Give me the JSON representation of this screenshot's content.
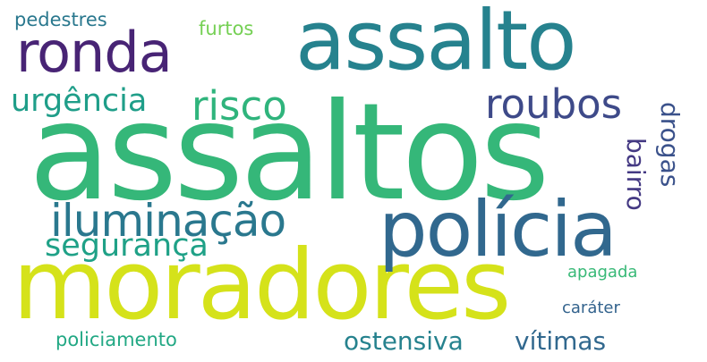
{
  "words": [
    {
      "text": "assaltos",
      "color": "#35b779"
    },
    {
      "text": "moradores",
      "color": "#d5e21a"
    },
    {
      "text": "assalto",
      "color": "#26828e"
    },
    {
      "text": "polícia",
      "color": "#31688e"
    },
    {
      "text": "ronda",
      "color": "#482475"
    },
    {
      "text": "iluminação",
      "color": "#2a788e"
    },
    {
      "text": "roubos",
      "color": "#3e4a89"
    },
    {
      "text": "risco",
      "color": "#2fb47c"
    },
    {
      "text": "urgência",
      "color": "#1f9e89"
    },
    {
      "text": "segurança",
      "color": "#1fa187"
    },
    {
      "text": "ostensiva",
      "color": "#26828e"
    },
    {
      "text": "vítimas",
      "color": "#31688e"
    },
    {
      "text": "drogas",
      "color": "#3b528b"
    },
    {
      "text": "bairro",
      "color": "#443983"
    },
    {
      "text": "pedestres",
      "color": "#2a788e"
    },
    {
      "text": "furtos",
      "color": "#75d054"
    },
    {
      "text": "policiamento",
      "color": "#22a884"
    },
    {
      "text": "apagada",
      "color": "#38b977"
    },
    {
      "text": "caráter",
      "color": "#33638d"
    }
  ]
}
